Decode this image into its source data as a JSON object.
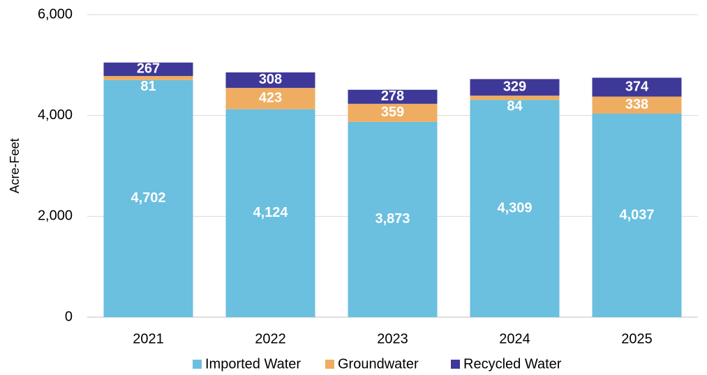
{
  "chart_data": {
    "type": "stacked_bar",
    "y_label": "Acre-Feet",
    "categories": [
      "2021",
      "2022",
      "2023",
      "2024",
      "2025"
    ],
    "series": [
      {
        "name": "Imported Water",
        "color": "#6bbfdf",
        "values": [
          4702,
          4124,
          3873,
          4309,
          4037
        ],
        "value_labels": [
          "4,702",
          "4,124",
          "3,873",
          "4,309",
          "4,037"
        ]
      },
      {
        "name": "Groundwater",
        "color": "#efad62",
        "values": [
          81,
          423,
          359,
          84,
          338
        ]
      },
      {
        "name": "Recycled Water",
        "color": "#3e3899",
        "values": [
          267,
          308,
          278,
          329,
          374
        ]
      }
    ],
    "ylim": [
      0,
      6000
    ],
    "yticks": [
      0,
      {
        "value": 2000,
        "label": "2,000"
      },
      {
        "value": 4000,
        "label": "4,000"
      },
      {
        "value": 6000,
        "label": "6,000"
      }
    ],
    "grid": true,
    "legend": "bottom"
  }
}
